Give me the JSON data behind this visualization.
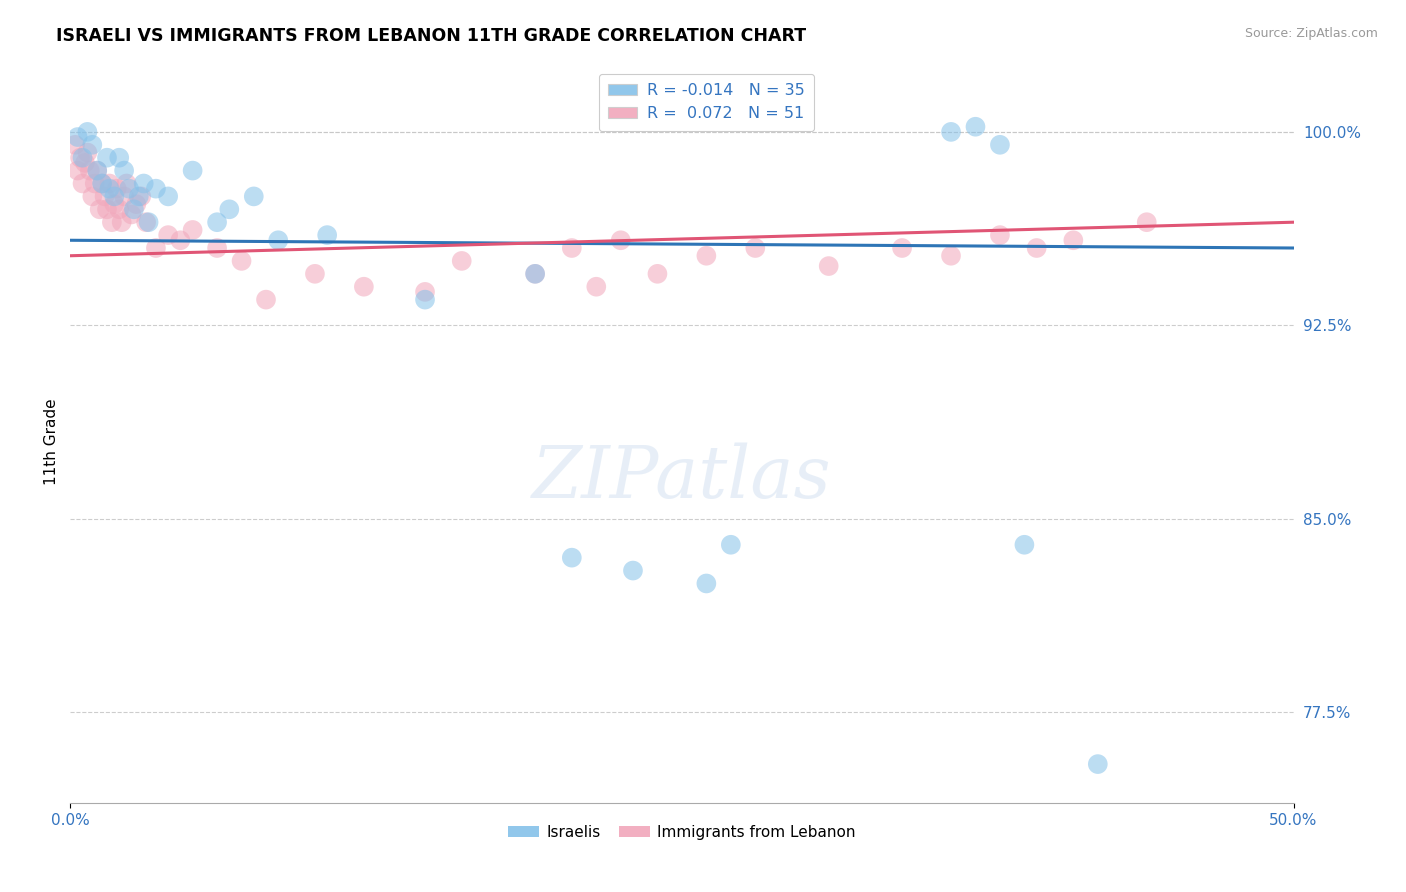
{
  "title": "ISRAELI VS IMMIGRANTS FROM LEBANON 11TH GRADE CORRELATION CHART",
  "source": "Source: ZipAtlas.com",
  "ylabel": "11th Grade",
  "israelis_color": "#85c1e9",
  "lebanon_color": "#f1a7bb",
  "trendline_israeli_color": "#2e75b6",
  "trendline_lebanon_color": "#e05575",
  "xlim": [
    0.0,
    50.0
  ],
  "ylim": [
    74.0,
    102.0
  ],
  "yticks": [
    77.5,
    85.0,
    92.5,
    100.0
  ],
  "R_israeli": -0.014,
  "N_israeli": 35,
  "R_lebanon": 0.072,
  "N_lebanon": 51,
  "trendline_isr_y0": 95.8,
  "trendline_isr_y1": 95.5,
  "trendline_leb_y0": 95.2,
  "trendline_leb_y1": 96.5,
  "israelis_x": [
    0.3,
    0.5,
    0.7,
    0.9,
    1.1,
    1.3,
    1.5,
    1.6,
    1.8,
    2.0,
    2.2,
    2.4,
    2.6,
    2.8,
    3.0,
    3.2,
    3.5,
    4.0,
    5.0,
    6.0,
    6.5,
    7.5,
    8.5,
    10.5,
    14.5,
    19.0,
    20.5,
    23.0,
    26.0,
    27.0,
    36.0,
    37.0,
    38.0,
    39.0,
    42.0
  ],
  "israelis_y": [
    99.8,
    99.0,
    100.0,
    99.5,
    98.5,
    98.0,
    99.0,
    97.8,
    97.5,
    99.0,
    98.5,
    97.8,
    97.0,
    97.5,
    98.0,
    96.5,
    97.8,
    97.5,
    98.5,
    96.5,
    97.0,
    97.5,
    95.8,
    96.0,
    93.5,
    94.5,
    83.5,
    83.0,
    82.5,
    84.0,
    100.0,
    100.2,
    99.5,
    84.0,
    75.5
  ],
  "lebanon_x": [
    0.2,
    0.3,
    0.4,
    0.5,
    0.6,
    0.7,
    0.8,
    0.9,
    1.0,
    1.1,
    1.2,
    1.3,
    1.4,
    1.5,
    1.6,
    1.7,
    1.8,
    1.9,
    2.0,
    2.1,
    2.2,
    2.3,
    2.5,
    2.7,
    2.9,
    3.1,
    3.5,
    4.0,
    4.5,
    5.0,
    6.0,
    7.0,
    8.0,
    10.0,
    12.0,
    14.5,
    16.0,
    19.0,
    20.5,
    21.5,
    22.5,
    24.0,
    26.0,
    28.0,
    31.0,
    34.0,
    36.0,
    38.0,
    39.5,
    41.0,
    44.0
  ],
  "lebanon_y": [
    99.5,
    98.5,
    99.0,
    98.0,
    98.8,
    99.2,
    98.5,
    97.5,
    98.0,
    98.5,
    97.0,
    98.0,
    97.5,
    97.0,
    98.0,
    96.5,
    97.2,
    97.8,
    97.0,
    96.5,
    97.5,
    98.0,
    96.8,
    97.2,
    97.5,
    96.5,
    95.5,
    96.0,
    95.8,
    96.2,
    95.5,
    95.0,
    93.5,
    94.5,
    94.0,
    93.8,
    95.0,
    94.5,
    95.5,
    94.0,
    95.8,
    94.5,
    95.2,
    95.5,
    94.8,
    95.5,
    95.2,
    96.0,
    95.5,
    95.8,
    96.5
  ],
  "background_color": "#ffffff",
  "grid_color": "#c8c8c8"
}
